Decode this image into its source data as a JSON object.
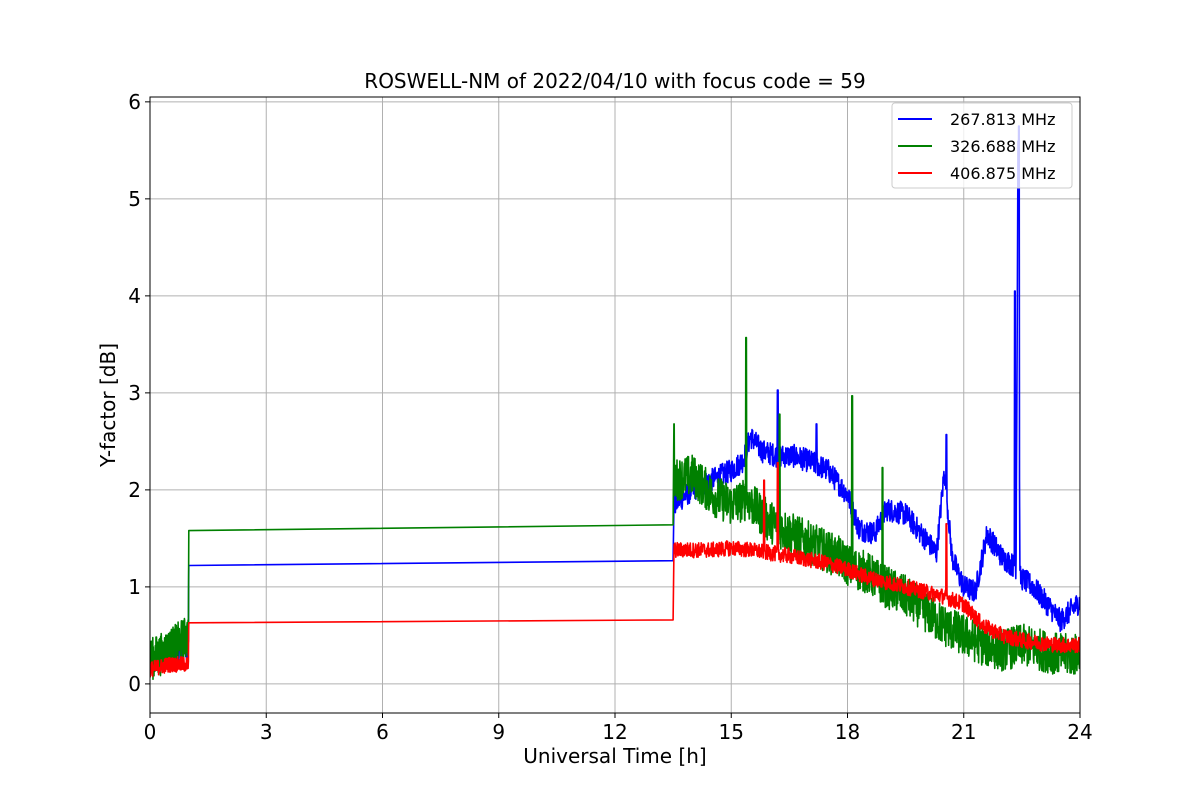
{
  "chart_data": {
    "type": "line",
    "title": "ROSWELL-NM of 2022/04/10 with focus code = 59",
    "xlabel": "Universal Time [h]",
    "ylabel": "Y-factor [dB]",
    "xlim": [
      0,
      24
    ],
    "ylim": [
      -0.3,
      6.05
    ],
    "xticks": [
      0,
      3,
      6,
      9,
      12,
      15,
      18,
      21,
      24
    ],
    "yticks": [
      0,
      1,
      2,
      3,
      4,
      5,
      6
    ],
    "grid": true,
    "legend_position": "top-right",
    "series": [
      {
        "name": "267.813 MHz",
        "color": "#0000ff",
        "noise": 0.12,
        "points": [
          [
            0.0,
            0.2
          ],
          [
            0.5,
            0.3
          ],
          [
            0.99,
            0.38
          ],
          [
            1.0,
            1.22
          ],
          [
            13.5,
            1.27
          ],
          [
            13.52,
            1.85
          ],
          [
            14.0,
            2.0
          ],
          [
            14.5,
            2.1
          ],
          [
            15.0,
            2.2
          ],
          [
            15.3,
            2.3
          ],
          [
            15.5,
            2.55
          ],
          [
            15.8,
            2.4
          ],
          [
            16.2,
            2.35
          ],
          [
            16.6,
            2.35
          ],
          [
            17.0,
            2.3
          ],
          [
            17.5,
            2.2
          ],
          [
            18.0,
            1.95
          ],
          [
            18.3,
            1.6
          ],
          [
            18.7,
            1.55
          ],
          [
            19.0,
            1.8
          ],
          [
            19.5,
            1.75
          ],
          [
            20.0,
            1.5
          ],
          [
            20.3,
            1.35
          ],
          [
            20.5,
            2.2
          ],
          [
            20.7,
            1.3
          ],
          [
            21.0,
            1.0
          ],
          [
            21.3,
            0.95
          ],
          [
            21.6,
            1.55
          ],
          [
            22.0,
            1.3
          ],
          [
            22.35,
            1.2
          ],
          [
            22.4,
            5.6
          ],
          [
            22.45,
            1.1
          ],
          [
            22.8,
            1.0
          ],
          [
            23.2,
            0.8
          ],
          [
            23.5,
            0.65
          ],
          [
            24.0,
            0.85
          ]
        ]
      },
      {
        "name": "326.688 MHz",
        "color": "#008000",
        "noise": 0.22,
        "points": [
          [
            0.0,
            0.25
          ],
          [
            0.5,
            0.35
          ],
          [
            0.99,
            0.5
          ],
          [
            1.0,
            1.58
          ],
          [
            13.5,
            1.64
          ],
          [
            13.52,
            2.1
          ],
          [
            14.0,
            2.15
          ],
          [
            14.5,
            1.95
          ],
          [
            15.0,
            1.85
          ],
          [
            15.4,
            1.9
          ],
          [
            15.9,
            1.7
          ],
          [
            16.3,
            1.6
          ],
          [
            16.8,
            1.5
          ],
          [
            17.3,
            1.4
          ],
          [
            17.8,
            1.3
          ],
          [
            18.1,
            1.2
          ],
          [
            18.5,
            1.15
          ],
          [
            19.0,
            1.0
          ],
          [
            19.5,
            0.9
          ],
          [
            20.0,
            0.75
          ],
          [
            20.5,
            0.6
          ],
          [
            21.0,
            0.5
          ],
          [
            21.5,
            0.4
          ],
          [
            22.0,
            0.35
          ],
          [
            22.5,
            0.4
          ],
          [
            23.0,
            0.35
          ],
          [
            23.5,
            0.3
          ],
          [
            24.0,
            0.3
          ]
        ]
      },
      {
        "name": "406.875 MHz",
        "color": "#ff0000",
        "noise": 0.08,
        "points": [
          [
            0.0,
            0.15
          ],
          [
            0.5,
            0.2
          ],
          [
            0.99,
            0.2
          ],
          [
            1.0,
            0.63
          ],
          [
            13.5,
            0.66
          ],
          [
            13.52,
            1.38
          ],
          [
            14.0,
            1.38
          ],
          [
            14.5,
            1.38
          ],
          [
            15.0,
            1.4
          ],
          [
            15.5,
            1.38
          ],
          [
            16.0,
            1.35
          ],
          [
            16.5,
            1.32
          ],
          [
            17.0,
            1.28
          ],
          [
            17.5,
            1.24
          ],
          [
            18.0,
            1.18
          ],
          [
            18.5,
            1.1
          ],
          [
            19.0,
            1.05
          ],
          [
            19.5,
            1.0
          ],
          [
            20.0,
            0.95
          ],
          [
            20.5,
            0.9
          ],
          [
            21.0,
            0.82
          ],
          [
            21.5,
            0.6
          ],
          [
            22.0,
            0.5
          ],
          [
            22.5,
            0.45
          ],
          [
            23.0,
            0.42
          ],
          [
            23.5,
            0.4
          ],
          [
            24.0,
            0.4
          ]
        ]
      }
    ],
    "spikes": [
      {
        "series": 1,
        "x": 15.38,
        "y": 3.57
      },
      {
        "series": 1,
        "x": 18.12,
        "y": 2.97
      },
      {
        "series": 0,
        "x": 16.2,
        "y": 3.03
      },
      {
        "series": 0,
        "x": 17.2,
        "y": 2.68
      },
      {
        "series": 0,
        "x": 20.55,
        "y": 2.57
      },
      {
        "series": 0,
        "x": 22.32,
        "y": 4.05
      },
      {
        "series": 0,
        "x": 22.42,
        "y": 5.75
      },
      {
        "series": 1,
        "x": 13.52,
        "y": 2.68
      },
      {
        "series": 1,
        "x": 16.25,
        "y": 2.78
      },
      {
        "series": 1,
        "x": 18.9,
        "y": 2.23
      },
      {
        "series": 2,
        "x": 16.2,
        "y": 2.28
      },
      {
        "series": 2,
        "x": 15.85,
        "y": 2.1
      },
      {
        "series": 2,
        "x": 20.55,
        "y": 1.65
      }
    ]
  }
}
